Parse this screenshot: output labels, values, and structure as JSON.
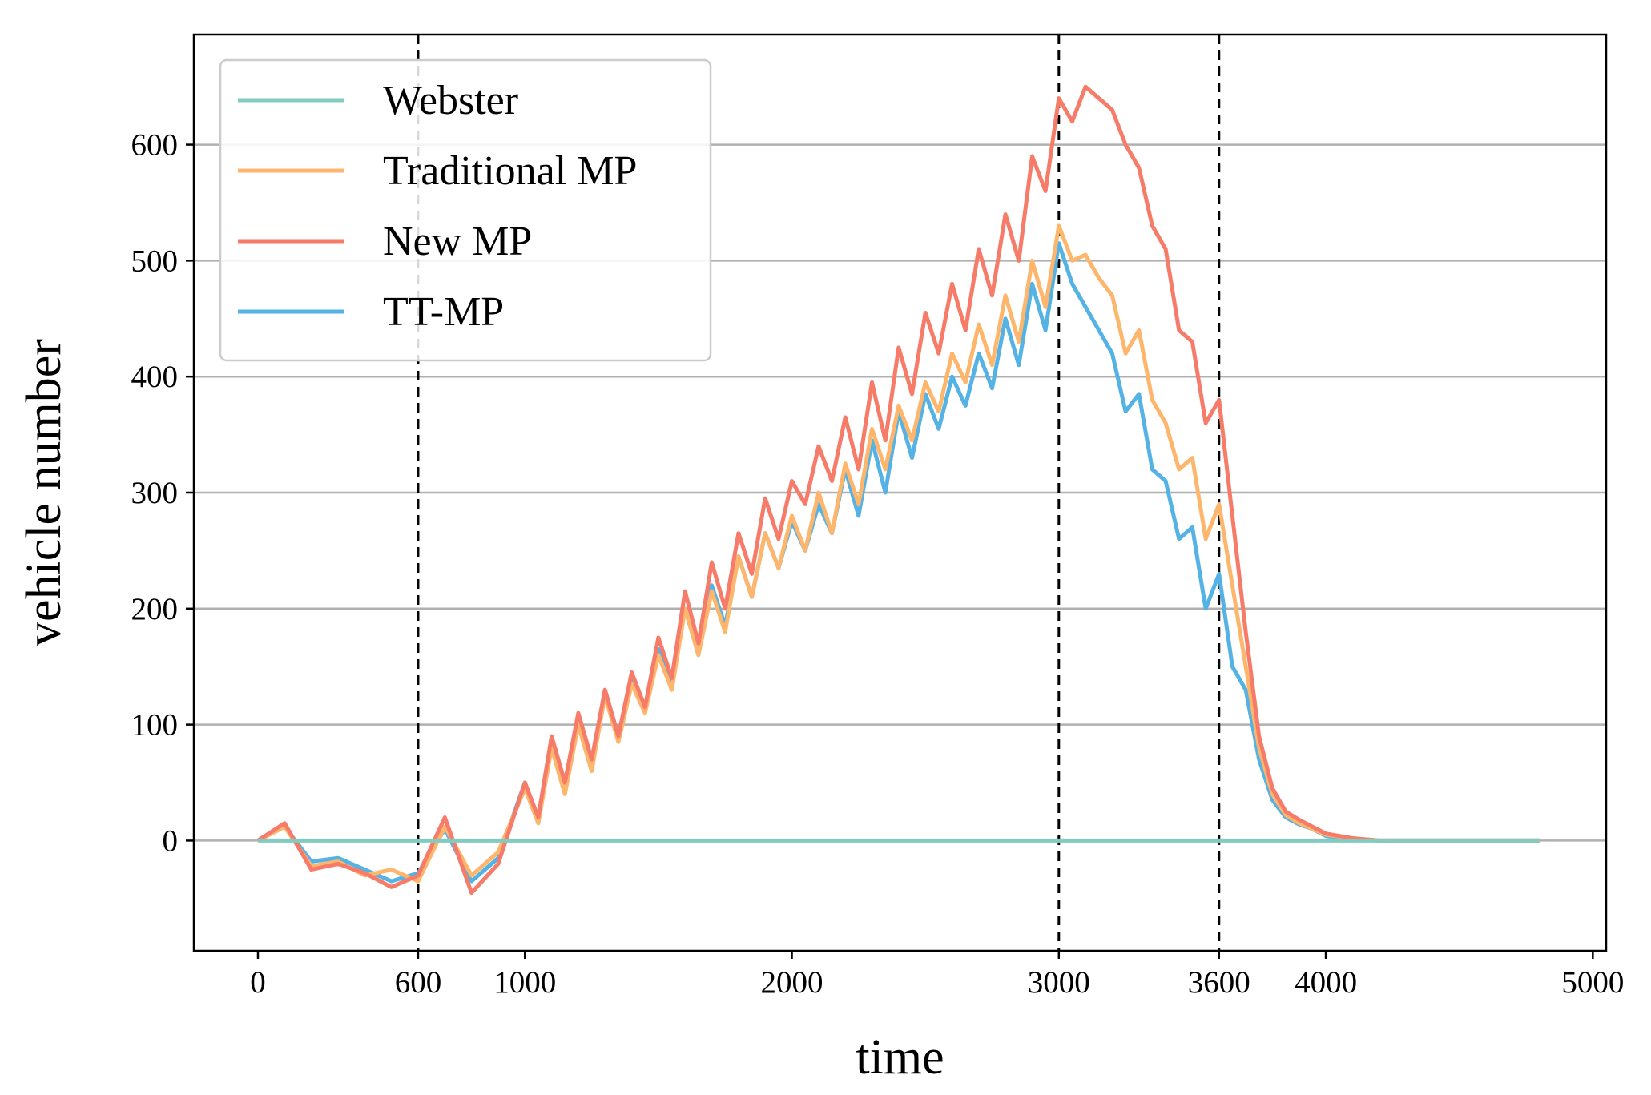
{
  "chart_data": {
    "type": "line",
    "title": "",
    "xlabel": "time",
    "ylabel": "vehicle number",
    "xlim": [
      -240,
      5050
    ],
    "ylim": [
      -95,
      695
    ],
    "x_ticks": [
      0,
      600,
      1000,
      2000,
      3000,
      3600,
      4000,
      5000
    ],
    "y_ticks": [
      0,
      100,
      200,
      300,
      400,
      500,
      600
    ],
    "grid": "horizontal",
    "vlines": [
      600,
      3000,
      3600
    ],
    "legend_position": "top-left",
    "series": [
      {
        "name": "Webster",
        "color": "#82cbc0",
        "x": [
          0,
          4800
        ],
        "y": [
          0,
          0
        ]
      },
      {
        "name": "Traditional MP",
        "color": "#fdb66c",
        "x": [
          0,
          100,
          200,
          300,
          400,
          500,
          600,
          700,
          800,
          900,
          1000,
          1050,
          1100,
          1150,
          1200,
          1250,
          1300,
          1350,
          1400,
          1450,
          1500,
          1550,
          1600,
          1650,
          1700,
          1750,
          1800,
          1850,
          1900,
          1950,
          2000,
          2050,
          2100,
          2150,
          2200,
          2250,
          2300,
          2350,
          2400,
          2450,
          2500,
          2550,
          2600,
          2650,
          2700,
          2750,
          2800,
          2850,
          2900,
          2950,
          3000,
          3050,
          3100,
          3150,
          3200,
          3250,
          3300,
          3350,
          3400,
          3450,
          3500,
          3550,
          3600,
          3650,
          3700,
          3750,
          3800,
          3850,
          3900,
          3950,
          4000,
          4100,
          4200,
          4300,
          4400,
          4600,
          4800
        ],
        "y": [
          0,
          12,
          -22,
          -18,
          -30,
          -25,
          -35,
          12,
          -30,
          -10,
          45,
          15,
          80,
          40,
          100,
          60,
          125,
          85,
          135,
          110,
          160,
          130,
          200,
          160,
          215,
          180,
          245,
          210,
          265,
          235,
          280,
          250,
          300,
          265,
          325,
          290,
          355,
          320,
          375,
          345,
          395,
          370,
          420,
          395,
          445,
          410,
          470,
          430,
          500,
          460,
          530,
          500,
          505,
          485,
          470,
          420,
          440,
          380,
          360,
          320,
          330,
          260,
          290,
          220,
          150,
          80,
          40,
          22,
          15,
          10,
          5,
          2,
          0,
          0,
          0,
          0,
          0
        ]
      },
      {
        "name": "New MP",
        "color": "#f77b69",
        "x": [
          0,
          100,
          200,
          300,
          400,
          500,
          600,
          700,
          800,
          900,
          1000,
          1050,
          1100,
          1150,
          1200,
          1250,
          1300,
          1350,
          1400,
          1450,
          1500,
          1550,
          1600,
          1650,
          1700,
          1750,
          1800,
          1850,
          1900,
          1950,
          2000,
          2050,
          2100,
          2150,
          2200,
          2250,
          2300,
          2350,
          2400,
          2450,
          2500,
          2550,
          2600,
          2650,
          2700,
          2750,
          2800,
          2850,
          2900,
          2950,
          3000,
          3050,
          3100,
          3150,
          3200,
          3250,
          3300,
          3350,
          3400,
          3450,
          3500,
          3550,
          3600,
          3650,
          3700,
          3750,
          3800,
          3850,
          3900,
          3950,
          4000,
          4100,
          4200,
          4300,
          4400,
          4600,
          4800
        ],
        "y": [
          0,
          15,
          -25,
          -20,
          -28,
          -40,
          -30,
          20,
          -45,
          -20,
          50,
          20,
          90,
          50,
          110,
          70,
          130,
          90,
          145,
          115,
          175,
          140,
          215,
          170,
          240,
          200,
          265,
          230,
          295,
          260,
          310,
          290,
          340,
          310,
          365,
          320,
          395,
          345,
          425,
          385,
          455,
          420,
          480,
          440,
          510,
          470,
          540,
          500,
          590,
          560,
          640,
          620,
          650,
          640,
          630,
          600,
          580,
          530,
          510,
          440,
          430,
          360,
          380,
          280,
          180,
          90,
          45,
          25,
          18,
          12,
          6,
          2,
          0,
          0,
          0,
          0,
          0
        ]
      },
      {
        "name": "TT-MP",
        "color": "#55b2e5",
        "x": [
          0,
          100,
          200,
          300,
          400,
          500,
          600,
          700,
          800,
          900,
          1000,
          1050,
          1100,
          1150,
          1200,
          1250,
          1300,
          1350,
          1400,
          1450,
          1500,
          1550,
          1600,
          1650,
          1700,
          1750,
          1800,
          1850,
          1900,
          1950,
          2000,
          2050,
          2100,
          2150,
          2200,
          2250,
          2300,
          2350,
          2400,
          2450,
          2500,
          2550,
          2600,
          2650,
          2700,
          2750,
          2800,
          2850,
          2900,
          2950,
          3000,
          3050,
          3100,
          3150,
          3200,
          3250,
          3300,
          3350,
          3400,
          3450,
          3500,
          3550,
          3600,
          3650,
          3700,
          3750,
          3800,
          3850,
          3900,
          3950,
          4000,
          4100,
          4200,
          4300,
          4400,
          4600,
          4800
        ],
        "y": [
          0,
          12,
          -18,
          -15,
          -25,
          -35,
          -28,
          10,
          -35,
          -15,
          50,
          15,
          85,
          45,
          100,
          60,
          130,
          90,
          140,
          115,
          165,
          135,
          200,
          160,
          220,
          185,
          245,
          210,
          265,
          235,
          275,
          250,
          290,
          265,
          320,
          280,
          345,
          300,
          370,
          330,
          385,
          355,
          400,
          375,
          420,
          390,
          450,
          410,
          480,
          440,
          515,
          480,
          460,
          440,
          420,
          370,
          385,
          320,
          310,
          260,
          270,
          200,
          230,
          150,
          130,
          70,
          35,
          20,
          14,
          10,
          4,
          1,
          0,
          0,
          0,
          0,
          0
        ]
      }
    ]
  }
}
